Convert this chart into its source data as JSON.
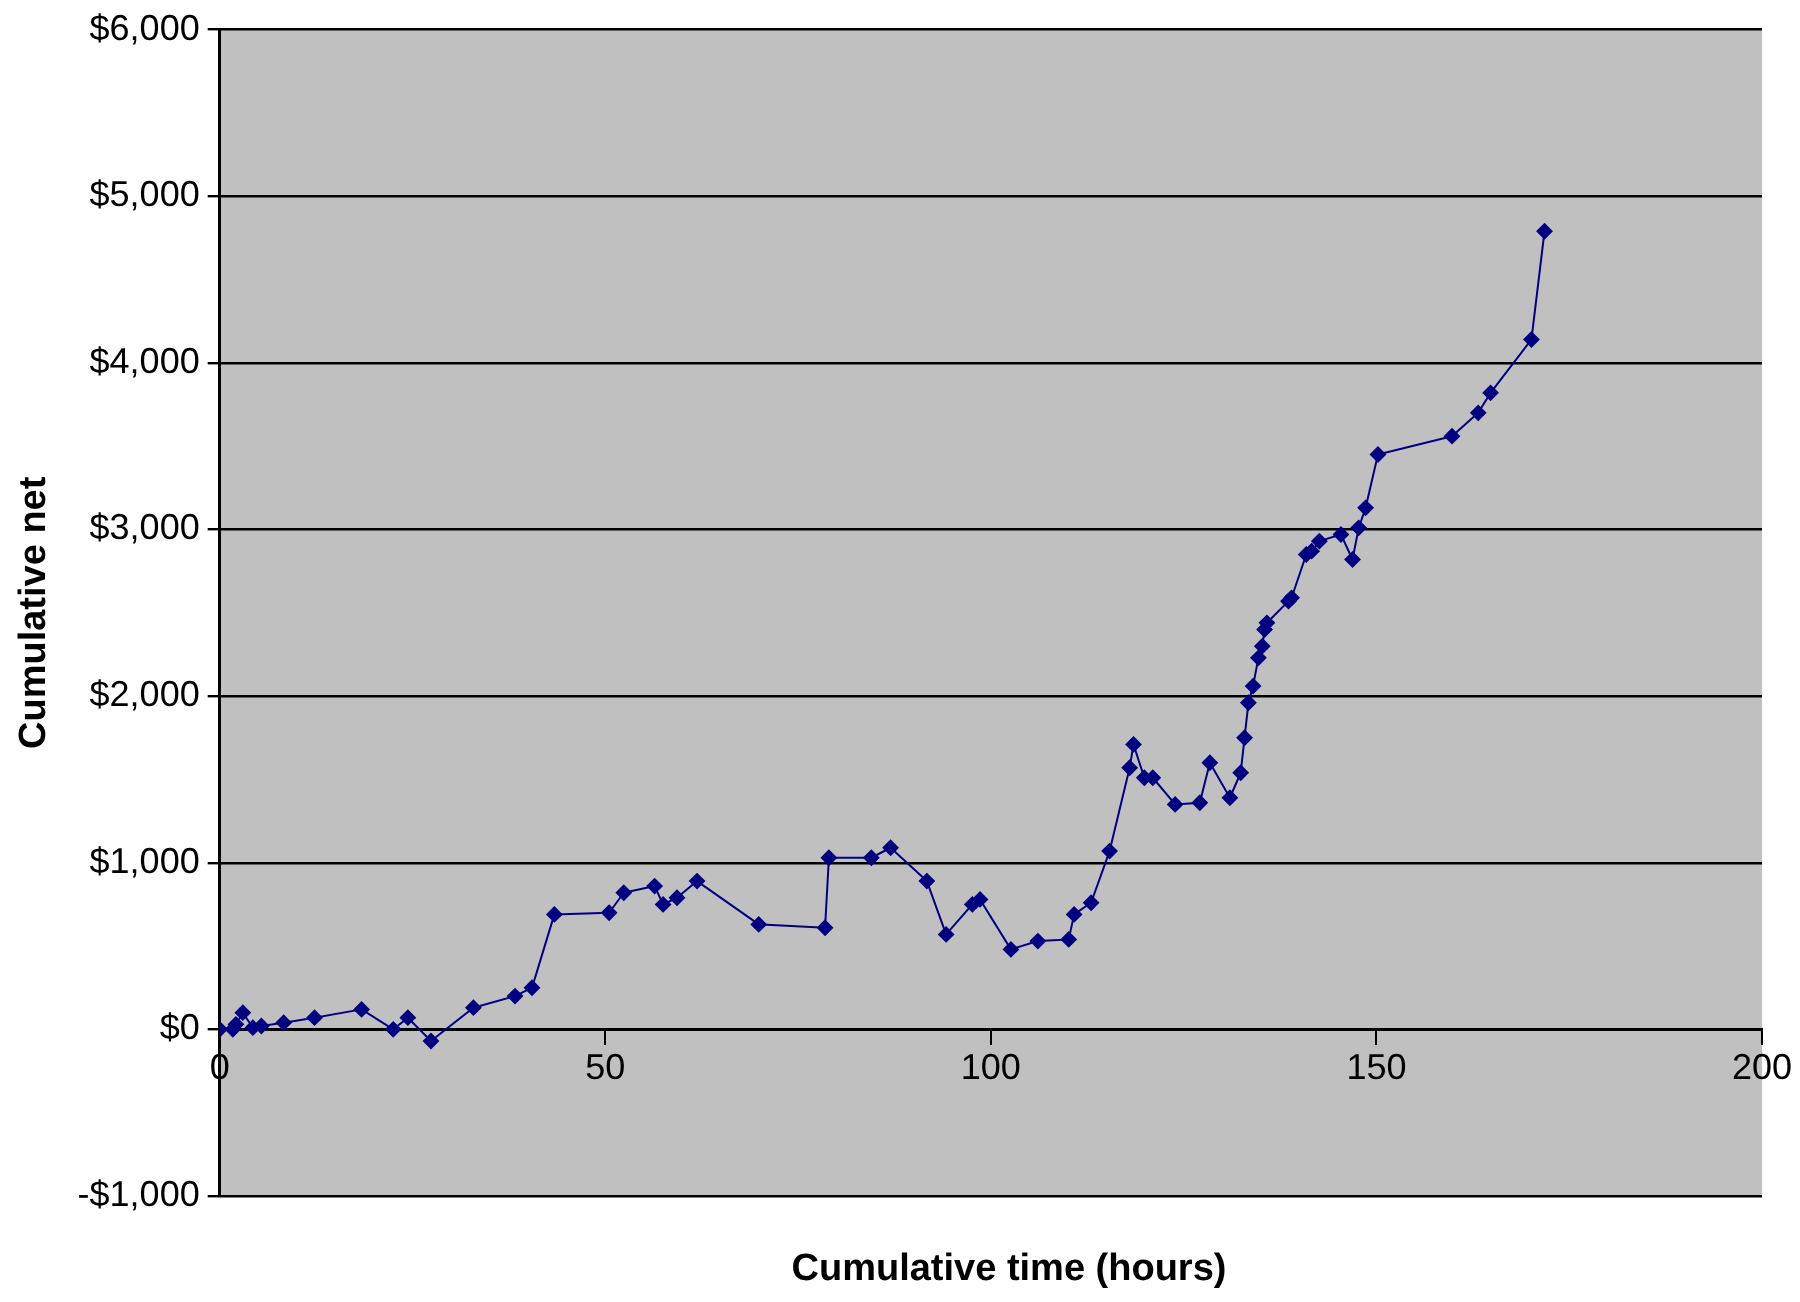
{
  "chart_data": {
    "type": "line",
    "xlabel": "Cumulative time (hours)",
    "ylabel": "Cumulative net",
    "xlim": [
      0,
      200
    ],
    "xticks": [
      0,
      50,
      100,
      150,
      200
    ],
    "ylim": [
      -1000,
      6000
    ],
    "yticks": [
      {
        "value": -1000,
        "label": "-$1,000"
      },
      {
        "value": 0,
        "label": "$0"
      },
      {
        "value": 1000,
        "label": "$1,000"
      },
      {
        "value": 2000,
        "label": "$2,000"
      },
      {
        "value": 3000,
        "label": "$3,000"
      },
      {
        "value": 4000,
        "label": "$4,000"
      },
      {
        "value": 5000,
        "label": "$5,000"
      },
      {
        "value": 6000,
        "label": "$6,000"
      }
    ],
    "grid": "y",
    "legend": false,
    "marker": "diamond",
    "line_style": "solid",
    "series": [
      {
        "color": "#000080",
        "x": [
          0,
          1.7,
          2.1,
          3.0,
          4.3,
          5.4,
          8.3,
          12.3,
          18.4,
          22.5,
          24.4,
          27.4,
          32.9,
          38.3,
          40.5,
          43.4,
          50.5,
          52.4,
          56.4,
          57.5,
          59.3,
          61.9,
          69.9,
          78.5,
          79.0,
          84.5,
          87.0,
          91.7,
          94.2,
          97.6,
          98.6,
          102.6,
          106.1,
          110.1,
          110.8,
          113.0,
          115.4,
          118.0,
          118.5,
          119.9,
          121.0,
          123.9,
          127.1,
          128.4,
          131.0,
          132.4,
          132.9,
          133.4,
          134.0,
          134.7,
          135.2,
          135.5,
          135.8,
          138.6,
          139.0,
          140.9,
          141.6,
          142.6,
          145.4,
          146.9,
          147.7,
          148.6,
          150.2,
          159.8,
          163.2,
          164.8,
          170.1,
          171.8
        ],
        "values": [
          0,
          0,
          30,
          100,
          10,
          20,
          40,
          70,
          120,
          0,
          70,
          -70,
          130,
          200,
          250,
          690,
          700,
          820,
          860,
          750,
          790,
          890,
          630,
          610,
          1030,
          1030,
          1090,
          890,
          570,
          750,
          780,
          480,
          530,
          540,
          690,
          760,
          1070,
          1570,
          1710,
          1510,
          1510,
          1350,
          1360,
          1600,
          1390,
          1540,
          1750,
          1960,
          2060,
          2230,
          2300,
          2400,
          2440,
          2570,
          2590,
          2850,
          2870,
          2930,
          2970,
          2820,
          3010,
          3130,
          3450,
          3560,
          3700,
          3820,
          4140,
          4790
        ]
      }
    ]
  }
}
